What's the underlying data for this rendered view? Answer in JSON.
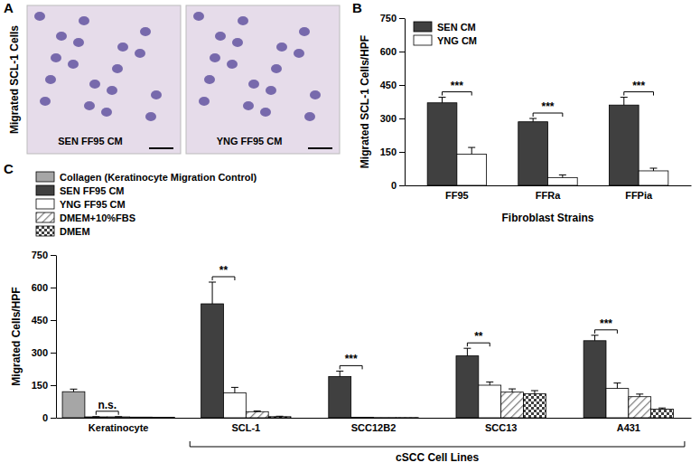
{
  "image_panel": {
    "label": "A",
    "y_label": "Migrated SCL-1 Cells",
    "images": [
      "SEN FF95 CM",
      "YNG FF95 CM"
    ]
  },
  "chart_data": [
    {
      "type": "bar",
      "annotations": [
        "B"
      ],
      "y_label": "Migrated SCL-1 Cells/HPF",
      "x_label": "Fibroblast Strains",
      "categories": [
        "FF95",
        "FFRa",
        "FFPia"
      ],
      "series": [
        {
          "name": "SEN CM",
          "color": "#404040",
          "values": [
            370,
            285,
            360
          ],
          "errors": [
            25,
            15,
            35
          ]
        },
        {
          "name": "YNG CM",
          "color": "#ffffff",
          "values": [
            140,
            35,
            65
          ],
          "errors": [
            30,
            12,
            12
          ]
        }
      ],
      "significance": [
        "***",
        "***",
        "***"
      ],
      "ylim": [
        0,
        750
      ],
      "yticks": [
        0,
        150,
        300,
        450,
        600,
        750
      ],
      "legend": "upper left"
    },
    {
      "type": "bar",
      "annotations": [
        "C"
      ],
      "y_label": "Migrated Cells/HPF",
      "x_label": "cSCC Cell Lines",
      "categories": [
        "Keratinocyte",
        "SCL-1",
        "SCC12B2",
        "SCC13",
        "A431"
      ],
      "series": [
        {
          "name": "Collagen (Keratinocyte Migration Control)",
          "color": "#a6a6a6",
          "values": [
            120,
            null,
            null,
            null,
            null
          ],
          "errors": [
            12,
            null,
            null,
            null,
            null
          ]
        },
        {
          "name": "SEN FF95 CM",
          "color": "#404040",
          "values": [
            4,
            525,
            190,
            285,
            355
          ],
          "errors": [
            1,
            100,
            25,
            35,
            25
          ]
        },
        {
          "name": "YNG FF95 CM",
          "color": "#ffffff",
          "values": [
            4,
            115,
            2,
            150,
            135
          ],
          "errors": [
            1,
            25,
            null,
            15,
            25
          ]
        },
        {
          "name": "DMEM+10%FBS",
          "color": "#7f7f7f",
          "values": [
            3,
            28,
            1,
            118,
            97
          ],
          "errors": [
            null,
            3,
            null,
            15,
            12
          ]
        },
        {
          "name": "DMEM",
          "color": "#404040",
          "values": [
            2,
            5,
            1,
            110,
            40
          ],
          "errors": [
            null,
            2,
            null,
            15,
            5
          ]
        }
      ],
      "significance": [
        "n.s.",
        "**",
        "***",
        "**",
        "***"
      ],
      "ylim": [
        0,
        750
      ],
      "yticks": [
        0,
        150,
        300,
        450,
        600,
        750
      ],
      "legend": "upper left"
    }
  ]
}
